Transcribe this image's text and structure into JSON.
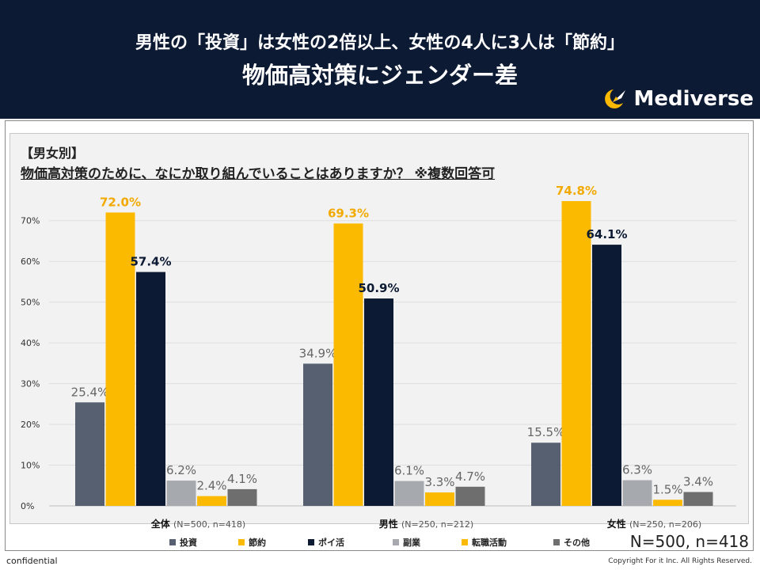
{
  "header": {
    "line1": "男性の「投資」は女性の2倍以上、女性の4人に3人は「節約」",
    "line2": "物価高対策にジェンダー差",
    "brand": "Mediverse"
  },
  "question": {
    "label": "【男女別】",
    "text": "物価高対策のために、なにか取り組んでいることはありますか？ ※複数回答可"
  },
  "summary": "N=500, n=418",
  "footer": {
    "confidential": "confidential",
    "copyright": "Copyright For it Inc. All Rights Reserved."
  },
  "colors": {
    "header_bg": "#0c1a33",
    "toushi": "#566070",
    "setsuyaku": "#fbb900",
    "poikatsu": "#0c1a33",
    "fukugyo": "#a6a9ae",
    "tenshoku": "#fbb900",
    "sonota": "#6e6e6e"
  },
  "chart_data": {
    "type": "bar",
    "title": "物価高対策のために、なにか取り組んでいることはありますか？ ※複数回答可",
    "xlabel": "",
    "ylabel": "",
    "ylim": [
      0,
      75
    ],
    "yticks": [
      0,
      10,
      20,
      30,
      40,
      50,
      60,
      70
    ],
    "ytick_labels": [
      "0%",
      "10%",
      "20%",
      "30%",
      "40%",
      "50%",
      "60%",
      "70%"
    ],
    "grid": true,
    "legend_position": "bottom",
    "categories": [
      {
        "label": "全体",
        "sub": "(N=500, n=418)"
      },
      {
        "label": "男性",
        "sub": "(N=250, n=212)"
      },
      {
        "label": "女性",
        "sub": "(N=250, n=206)"
      }
    ],
    "series": [
      {
        "name": "投資",
        "color": "#566070",
        "values": [
          25.4,
          34.9,
          15.5
        ],
        "labels": [
          "25.4%",
          "34.9%",
          "15.5%"
        ],
        "label_color": "#666666",
        "label_bold": false
      },
      {
        "name": "節約",
        "color": "#fbb900",
        "values": [
          72.0,
          69.3,
          74.8
        ],
        "labels": [
          "72.0%",
          "69.3%",
          "74.8%"
        ],
        "label_color": "#f2a900",
        "label_bold": true
      },
      {
        "name": "ポイ活",
        "color": "#0c1a33",
        "values": [
          57.4,
          50.9,
          64.1
        ],
        "labels": [
          "57.4%",
          "50.9%",
          "64.1%"
        ],
        "label_color": "#0c1a33",
        "label_bold": true
      },
      {
        "name": "副業",
        "color": "#a6a9ae",
        "values": [
          6.2,
          6.1,
          6.3
        ],
        "labels": [
          "6.2%",
          "6.1%",
          "6.3%"
        ],
        "label_color": "#666666",
        "label_bold": false
      },
      {
        "name": "転職活動",
        "color": "#fbb900",
        "values": [
          2.4,
          3.3,
          1.5
        ],
        "labels": [
          "2.4%",
          "3.3%",
          "1.5%"
        ],
        "label_color": "#666666",
        "label_bold": false
      },
      {
        "name": "その他",
        "color": "#6e6e6e",
        "values": [
          4.1,
          4.7,
          3.4
        ],
        "labels": [
          "4.1%",
          "4.7%",
          "3.4%"
        ],
        "label_color": "#666666",
        "label_bold": false
      }
    ]
  }
}
